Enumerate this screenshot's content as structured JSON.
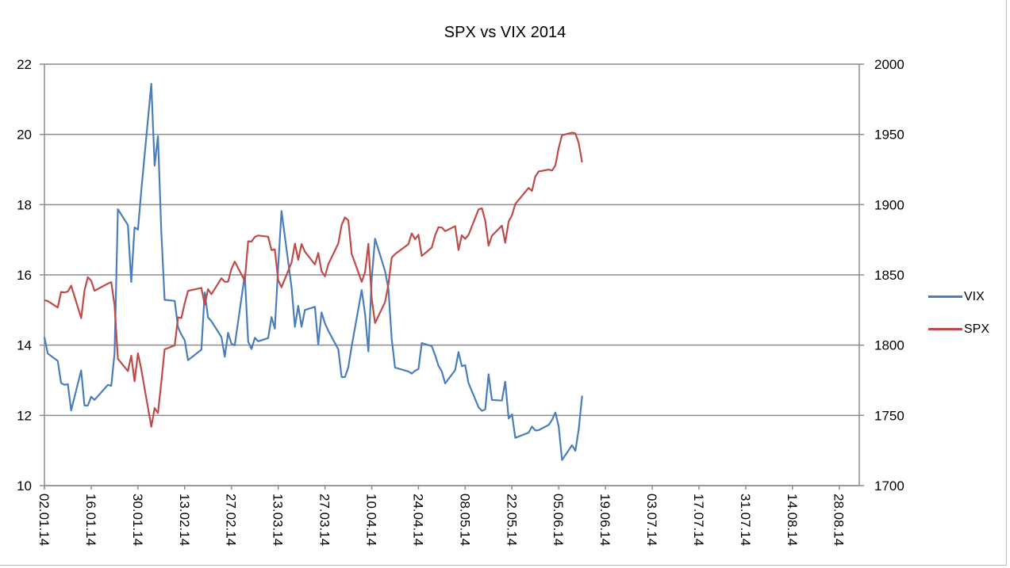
{
  "chart_data": {
    "type": "line",
    "title": "SPX vs  VIX 2014",
    "xlabel": "",
    "ylabel_left": "",
    "ylabel_right": "",
    "xlim": [
      "2014-01-02",
      "2014-09-03"
    ],
    "ylim_left": [
      10,
      22
    ],
    "ylim_right": [
      1700,
      2000
    ],
    "yticks_left": [
      "10",
      "12",
      "14",
      "16",
      "18",
      "20",
      "22"
    ],
    "yticks_right": [
      "1700",
      "1750",
      "1800",
      "1850",
      "1900",
      "1950",
      "2000"
    ],
    "xtick_labels": [
      "02.01.14",
      "16.01.14",
      "30.01.14",
      "13.02.14",
      "27.02.14",
      "13.03.14",
      "27.03.14",
      "10.04.14",
      "24.04.14",
      "08.05.14",
      "22.05.14",
      "05.06.14",
      "19.06.14",
      "03.07.14",
      "17.07.14",
      "31.07.14",
      "14.08.14",
      "28.08.14"
    ],
    "grid": "horizontal",
    "legend_position": "right",
    "x": [
      "2014-01-02",
      "2014-01-03",
      "2014-01-06",
      "2014-01-07",
      "2014-01-08",
      "2014-01-09",
      "2014-01-10",
      "2014-01-13",
      "2014-01-14",
      "2014-01-15",
      "2014-01-16",
      "2014-01-17",
      "2014-01-21",
      "2014-01-22",
      "2014-01-23",
      "2014-01-24",
      "2014-01-27",
      "2014-01-28",
      "2014-01-29",
      "2014-01-30",
      "2014-01-31",
      "2014-02-03",
      "2014-02-04",
      "2014-02-05",
      "2014-02-06",
      "2014-02-07",
      "2014-02-10",
      "2014-02-11",
      "2014-02-12",
      "2014-02-13",
      "2014-02-14",
      "2014-02-18",
      "2014-02-19",
      "2014-02-20",
      "2014-02-21",
      "2014-02-24",
      "2014-02-25",
      "2014-02-26",
      "2014-02-27",
      "2014-02-28",
      "2014-03-03",
      "2014-03-04",
      "2014-03-05",
      "2014-03-06",
      "2014-03-07",
      "2014-03-10",
      "2014-03-11",
      "2014-03-12",
      "2014-03-13",
      "2014-03-14",
      "2014-03-17",
      "2014-03-18",
      "2014-03-19",
      "2014-03-20",
      "2014-03-21",
      "2014-03-24",
      "2014-03-25",
      "2014-03-26",
      "2014-03-27",
      "2014-03-28",
      "2014-03-31",
      "2014-04-01",
      "2014-04-02",
      "2014-04-03",
      "2014-04-04",
      "2014-04-07",
      "2014-04-08",
      "2014-04-09",
      "2014-04-10",
      "2014-04-11",
      "2014-04-14",
      "2014-04-15",
      "2014-04-16",
      "2014-04-17",
      "2014-04-21",
      "2014-04-22",
      "2014-04-23",
      "2014-04-24",
      "2014-04-25",
      "2014-04-28",
      "2014-04-29",
      "2014-04-30",
      "2014-05-01",
      "2014-05-02",
      "2014-05-05",
      "2014-05-06",
      "2014-05-07",
      "2014-05-08",
      "2014-05-09",
      "2014-05-12",
      "2014-05-13",
      "2014-05-14",
      "2014-05-15",
      "2014-05-16",
      "2014-05-19",
      "2014-05-20",
      "2014-05-21",
      "2014-05-22",
      "2014-05-23",
      "2014-05-27",
      "2014-05-28",
      "2014-05-29",
      "2014-05-30",
      "2014-06-02",
      "2014-06-03",
      "2014-06-04",
      "2014-06-05",
      "2014-06-06",
      "2014-06-09",
      "2014-06-10",
      "2014-06-11",
      "2014-06-12"
    ],
    "series": [
      {
        "name": "VIX",
        "axis": "left",
        "color": "#4a7ebb",
        "values": [
          14.23,
          13.76,
          13.55,
          12.92,
          12.87,
          12.89,
          12.14,
          13.28,
          12.28,
          12.28,
          12.53,
          12.44,
          12.87,
          12.84,
          13.77,
          17.87,
          17.42,
          15.8,
          17.35,
          17.29,
          18.41,
          21.44,
          19.11,
          19.95,
          17.23,
          15.29,
          15.26,
          14.51,
          14.3,
          14.14,
          13.57,
          13.87,
          15.5,
          14.79,
          14.68,
          14.23,
          13.67,
          14.35,
          14.04,
          14.0,
          16.0,
          14.1,
          13.89,
          14.21,
          14.11,
          14.2,
          14.8,
          14.47,
          16.22,
          17.82,
          15.64,
          14.52,
          15.12,
          14.52,
          15.0,
          15.09,
          14.02,
          14.93,
          14.62,
          14.41,
          13.88,
          13.09,
          13.09,
          13.37,
          13.96,
          15.57,
          14.89,
          13.82,
          15.89,
          17.03,
          16.11,
          15.61,
          14.18,
          13.36,
          13.25,
          13.19,
          13.27,
          13.32,
          14.06,
          13.97,
          13.71,
          13.41,
          13.25,
          12.91,
          13.29,
          13.8,
          13.4,
          13.43,
          12.92,
          12.23,
          12.13,
          12.17,
          13.17,
          12.44,
          12.42,
          12.96,
          11.91,
          12.03,
          11.36,
          11.51,
          11.68,
          11.57,
          11.58,
          11.73,
          11.87,
          12.08,
          11.68,
          10.73,
          11.15,
          10.99,
          11.6,
          12.56
        ]
      },
      {
        "name": "SPX",
        "axis": "right",
        "color": "#be4b48",
        "values": [
          1831.98,
          1831.37,
          1826.77,
          1837.88,
          1837.49,
          1838.13,
          1842.37,
          1819.2,
          1838.88,
          1848.38,
          1845.89,
          1838.7,
          1843.8,
          1844.86,
          1828.46,
          1790.29,
          1781.56,
          1792.5,
          1774.2,
          1794.19,
          1782.59,
          1741.89,
          1755.2,
          1751.64,
          1773.43,
          1797.02,
          1799.84,
          1819.75,
          1819.26,
          1829.83,
          1838.63,
          1840.76,
          1828.75,
          1839.78,
          1836.25,
          1847.61,
          1845.12,
          1845.16,
          1854.29,
          1859.45,
          1845.73,
          1873.91,
          1873.81,
          1877.03,
          1878.04,
          1877.17,
          1867.63,
          1868.2,
          1846.34,
          1841.13,
          1858.83,
          1872.25,
          1860.77,
          1872.01,
          1866.52,
          1857.44,
          1865.62,
          1852.56,
          1849.04,
          1857.62,
          1872.34,
          1885.52,
          1890.9,
          1888.77,
          1865.09,
          1845.04,
          1851.96,
          1872.18,
          1833.08,
          1815.69,
          1830.61,
          1842.98,
          1862.31,
          1864.85,
          1871.89,
          1879.55,
          1875.39,
          1878.61,
          1863.4,
          1869.43,
          1878.33,
          1883.95,
          1883.68,
          1881.14,
          1884.66,
          1867.72,
          1878.21,
          1875.63,
          1878.48,
          1896.65,
          1897.45,
          1888.53,
          1870.85,
          1877.86,
          1885.08,
          1872.83,
          1888.03,
          1892.49,
          1900.53,
          1911.91,
          1909.78,
          1920.03,
          1923.57,
          1924.97,
          1924.24,
          1927.88,
          1940.46,
          1949.44,
          1951.27,
          1950.79,
          1943.89,
          1930.11
        ]
      }
    ]
  }
}
